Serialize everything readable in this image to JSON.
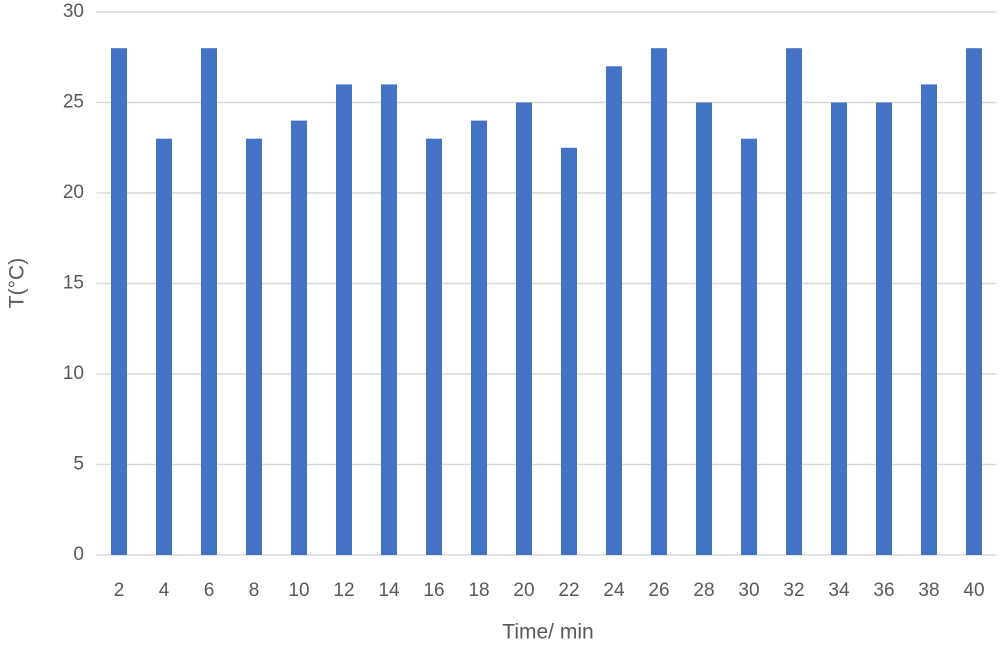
{
  "chart_data": {
    "type": "bar",
    "xlabel": "Time/ min",
    "ylabel": "T(°C)",
    "categories": [
      "2",
      "4",
      "6",
      "8",
      "10",
      "12",
      "14",
      "16",
      "18",
      "20",
      "22",
      "24",
      "26",
      "28",
      "30",
      "32",
      "34",
      "36",
      "38",
      "40"
    ],
    "values": [
      28,
      23,
      28,
      23,
      24,
      26,
      26,
      23,
      24,
      25,
      22.5,
      27,
      28,
      25,
      23,
      28,
      25,
      25,
      26,
      28
    ],
    "color": "#4472c4",
    "ylim": [
      0,
      30
    ],
    "yticks": [
      0,
      5,
      10,
      15,
      20,
      25,
      30
    ],
    "grid": true
  }
}
